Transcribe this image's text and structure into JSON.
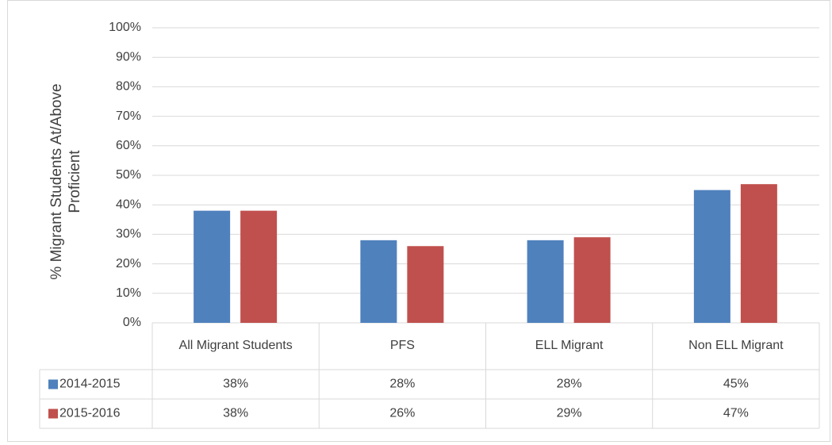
{
  "chart_data": {
    "type": "bar",
    "ylabel": "% Migrant Students At/Above Proficient",
    "categories": [
      "All Migrant Students",
      "PFS",
      "ELL Migrant",
      "Non ELL Migrant"
    ],
    "series": [
      {
        "name": "2014-2015",
        "color": "#4f81bd",
        "values": [
          38,
          28,
          28,
          45
        ],
        "value_labels": [
          "38%",
          "28%",
          "28%",
          "45%"
        ]
      },
      {
        "name": "2015-2016",
        "color": "#c0504d",
        "values": [
          38,
          26,
          29,
          47
        ],
        "value_labels": [
          "38%",
          "26%",
          "29%",
          "47%"
        ]
      }
    ],
    "ylim": [
      0,
      100
    ],
    "yticks": [
      {
        "value": 0,
        "label": "0%"
      },
      {
        "value": 10,
        "label": "10%"
      },
      {
        "value": 20,
        "label": "20%"
      },
      {
        "value": 30,
        "label": "30%"
      },
      {
        "value": 40,
        "label": "40%"
      },
      {
        "value": 50,
        "label": "50%"
      },
      {
        "value": 60,
        "label": "60%"
      },
      {
        "value": 70,
        "label": "70%"
      },
      {
        "value": 80,
        "label": "80%"
      },
      {
        "value": 90,
        "label": "90%"
      },
      {
        "value": 100,
        "label": "100%"
      }
    ],
    "grid": true,
    "data_table": true
  }
}
